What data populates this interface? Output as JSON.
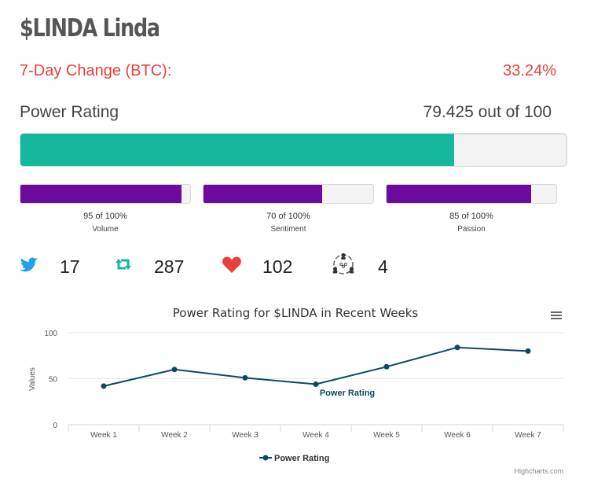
{
  "header": {
    "title": "$LINDA Linda"
  },
  "change": {
    "label": "7-Day Change (BTC):",
    "value": "33.24%"
  },
  "power_rating": {
    "label": "Power Rating",
    "value_text": "79.425 out of 100",
    "value": 79.425
  },
  "metrics": [
    {
      "value_text": "95 of 100%",
      "label": "Volume",
      "value": 95
    },
    {
      "value_text": "70 of 100%",
      "label": "Sentiment",
      "value": 70
    },
    {
      "value_text": "85 of 100%",
      "label": "Passion",
      "value": 85
    }
  ],
  "social": {
    "tweets": "17",
    "retweets": "287",
    "likes": "102",
    "influencers": "4"
  },
  "icons": {
    "tweets": "twitter-icon",
    "retweets": "retweet-icon",
    "likes": "heart-icon",
    "influencers": "network-icon",
    "menu": "hamburger-menu-icon"
  },
  "colors": {
    "accent_red": "#e8403a",
    "power_bar": "#15b79d",
    "metric_bar": "#6c0a9f",
    "series_line": "#0e4a5e"
  },
  "chart_data": {
    "type": "line",
    "title": "Power Rating for $LINDA in Recent Weeks",
    "categories": [
      "Week 1",
      "Week 2",
      "Week 3",
      "Week 4",
      "Week 5",
      "Week 6",
      "Week 7"
    ],
    "series": [
      {
        "name": "Power Rating",
        "values": [
          42,
          60,
          51,
          44,
          63,
          84,
          80
        ]
      }
    ],
    "xlabel": "",
    "ylabel": "Values",
    "ylim": [
      0,
      100
    ],
    "yticks": [
      "0",
      "50",
      "100"
    ],
    "annotation": "Power Rating",
    "legend": "bottom-center",
    "credit": "Highcharts.com"
  }
}
